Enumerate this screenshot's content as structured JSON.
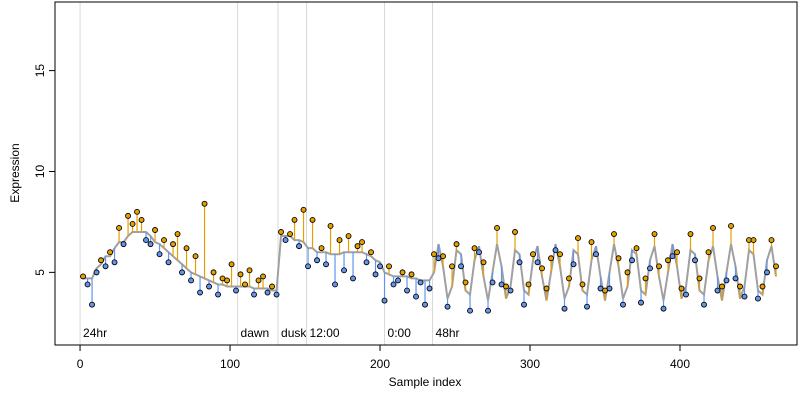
{
  "chart_data": {
    "type": "scatter",
    "xlabel": "Sample index",
    "ylabel": "Expression",
    "xlim": [
      -16.7,
      478
    ],
    "ylim": [
      1.4,
      18.4
    ],
    "xticks": [
      0,
      100,
      200,
      300,
      400
    ],
    "yticks": [
      5,
      10,
      15
    ],
    "colors": {
      "above": "#e69f00",
      "below": "#6495ed",
      "fit": "#a0a0a0",
      "point": "#000000",
      "event": "#d9d9d9",
      "event_label": "#a6a6a6"
    },
    "events": [
      {
        "x": 0,
        "label": "24hr"
      },
      {
        "x": 105,
        "label": "dawn"
      },
      {
        "x": 132,
        "label": "dusk"
      },
      {
        "x": 151,
        "label": "12:00"
      },
      {
        "x": 203,
        "label": "0:00"
      },
      {
        "x": 235,
        "label": "48hr"
      }
    ],
    "x": [
      2,
      5,
      8,
      11,
      14,
      17,
      20,
      23,
      26,
      29,
      32,
      35,
      38,
      41,
      44,
      47,
      50,
      53,
      56,
      59,
      62,
      65,
      68,
      71,
      74,
      77,
      80,
      83,
      86,
      89,
      92,
      95,
      98,
      101,
      104,
      107,
      110,
      113,
      116,
      119,
      122,
      125,
      128,
      131,
      134,
      137,
      140,
      143,
      146,
      149,
      152,
      155,
      158,
      161,
      164,
      167,
      170,
      173,
      176,
      179,
      182,
      185,
      188,
      191,
      194,
      197,
      200,
      203,
      206,
      209,
      212,
      215,
      218,
      221,
      224,
      227,
      230,
      233,
      236,
      239,
      242,
      245,
      248,
      251,
      254,
      257,
      260,
      263,
      266,
      269,
      272,
      275,
      278,
      281,
      284,
      287,
      290,
      293,
      296,
      299,
      302,
      305,
      308,
      311,
      314,
      317,
      320,
      323,
      326,
      329,
      332,
      335,
      338,
      341,
      344,
      347,
      350,
      353,
      356,
      359,
      362,
      365,
      368,
      371,
      374,
      377,
      380,
      383,
      386,
      389,
      392,
      395,
      398,
      401,
      404,
      407,
      410,
      413,
      416,
      419,
      422,
      425,
      428,
      431,
      434,
      437,
      440,
      443,
      446,
      449,
      452,
      455,
      458,
      461,
      464
    ],
    "values": [
      4.8,
      4.4,
      3.4,
      5.0,
      5.6,
      5.3,
      6.0,
      5.5,
      7.2,
      6.4,
      7.8,
      7.4,
      8.0,
      7.6,
      6.6,
      6.4,
      7.1,
      5.9,
      6.6,
      5.5,
      6.4,
      6.9,
      5.0,
      6.2,
      4.6,
      5.8,
      4.0,
      8.4,
      4.3,
      5.0,
      3.9,
      4.7,
      4.6,
      5.4,
      4.1,
      4.9,
      4.4,
      5.1,
      3.9,
      4.6,
      4.8,
      4.0,
      4.3,
      3.9,
      7.0,
      6.6,
      6.9,
      7.6,
      6.3,
      8.1,
      5.3,
      7.6,
      5.6,
      6.2,
      5.4,
      7.3,
      4.4,
      6.6,
      5.1,
      6.8,
      4.7,
      6.3,
      6.5,
      5.5,
      6.0,
      4.9,
      5.3,
      3.6,
      5.3,
      4.4,
      4.6,
      5.0,
      4.1,
      4.9,
      3.8,
      4.5,
      3.4,
      4.2,
      5.9,
      5.7,
      5.8,
      3.3,
      5.3,
      6.4,
      5.3,
      4.5,
      3.1,
      6.2,
      6.0,
      5.5,
      3.1,
      4.5,
      7.2,
      4.4,
      4.3,
      4.1,
      7.0,
      5.5,
      3.4,
      4.4,
      5.9,
      5.5,
      5.2,
      4.2,
      5.7,
      6.1,
      5.9,
      3.2,
      4.7,
      5.4,
      6.7,
      4.4,
      3.3,
      6.5,
      5.9,
      4.2,
      4.1,
      4.2,
      6.9,
      5.7,
      3.4,
      5.0,
      5.6,
      6.2,
      3.5,
      4.7,
      5.2,
      6.9,
      5.3,
      3.2,
      5.6,
      5.8,
      6.0,
      4.2,
      3.9,
      6.9,
      5.6,
      4.7,
      3.4,
      6.0,
      7.2,
      4.1,
      4.3,
      4.6,
      7.3,
      4.7,
      4.3,
      3.8,
      6.6,
      6.6,
      3.7,
      4.3,
      5.0,
      6.6,
      5.3
    ],
    "fitted": [
      4.7,
      4.7,
      4.7,
      5.2,
      5.4,
      5.8,
      5.8,
      6.2,
      6.5,
      6.5,
      6.8,
      7.0,
      7.0,
      7.0,
      7.0,
      6.8,
      6.5,
      6.4,
      6.2,
      6.0,
      5.8,
      5.6,
      5.4,
      5.2,
      5.0,
      4.9,
      4.8,
      4.7,
      4.6,
      4.5,
      4.4,
      4.4,
      4.3,
      4.3,
      4.3,
      4.3,
      4.3,
      4.3,
      4.2,
      4.2,
      4.2,
      4.2,
      4.1,
      4.1,
      6.8,
      6.8,
      6.8,
      6.6,
      6.6,
      6.5,
      6.2,
      6.2,
      6.0,
      6.0,
      6.0,
      5.9,
      5.9,
      5.9,
      6.0,
      6.0,
      6.0,
      6.0,
      6.0,
      5.9,
      5.8,
      5.6,
      5.5,
      5.0,
      4.9,
      4.8,
      4.8,
      4.8,
      4.8,
      4.7,
      4.7,
      4.6,
      4.6,
      4.6,
      5.0,
      6.4,
      5.3,
      3.7,
      4.3,
      6.1,
      5.9,
      4.1,
      3.9,
      5.6,
      6.3,
      4.8,
      3.6,
      5.0,
      6.4,
      5.3,
      3.7,
      4.3,
      6.1,
      5.9,
      4.1,
      3.9,
      5.6,
      6.3,
      4.8,
      3.6,
      5.0,
      6.4,
      5.3,
      3.7,
      4.3,
      6.1,
      5.9,
      4.1,
      3.9,
      5.6,
      6.3,
      4.8,
      3.6,
      5.0,
      6.4,
      5.3,
      3.7,
      4.3,
      6.1,
      5.9,
      4.1,
      3.9,
      5.6,
      6.3,
      4.8,
      3.6,
      5.0,
      6.4,
      5.3,
      3.7,
      4.3,
      6.1,
      5.9,
      4.1,
      3.9,
      5.6,
      6.3,
      4.8,
      3.6,
      5.0,
      6.4,
      5.3,
      3.7,
      4.3,
      6.1,
      5.9,
      4.1,
      3.9,
      5.6,
      6.3,
      4.8
    ]
  }
}
